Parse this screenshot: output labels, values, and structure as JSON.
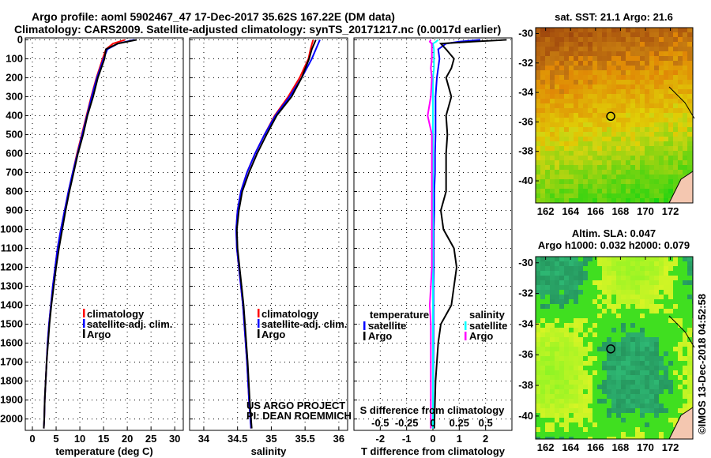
{
  "title_line1": "Argo profile: aoml 5902467_47 17-Dec-2017 35.62S 167.22E (DM data)",
  "title_line2": "Climatology: CARS2009. Satellite-adjusted climatology: synTS_20171217.nc (0.0017d earlier)",
  "credit_line1": "US ARGO PROJECT",
  "credit_line2": "PI: DEAN ROEMMICH",
  "imos_stamp": "©IMOS 13-Dec-2018 04:52:58",
  "colors": {
    "climatology": "#ff0000",
    "satellite": "#0000ff",
    "argo": "#000000",
    "s_satellite": "#00ffff",
    "s_argo": "#ff00ff"
  },
  "chart_data": [
    {
      "type": "line",
      "name": "temperature",
      "xlabel": "temperature (deg C)",
      "ylabel": "",
      "xlim": [
        -1.5,
        31.8
      ],
      "ylim": [
        2060,
        -10
      ],
      "xticks": [
        0,
        5,
        10,
        15,
        20,
        25,
        30
      ],
      "yticks": [
        0,
        100,
        200,
        300,
        400,
        500,
        600,
        700,
        800,
        900,
        1000,
        1100,
        1200,
        1300,
        1400,
        1500,
        1600,
        1700,
        1800,
        1900,
        2000
      ],
      "legend": [
        "climatology",
        "satellite-adj. clim.",
        "Argo"
      ],
      "depth": [
        0,
        20,
        50,
        100,
        200,
        300,
        400,
        500,
        600,
        700,
        800,
        900,
        1000,
        1100,
        1200,
        1300,
        1400,
        1500,
        1600,
        1700,
        1800,
        1900,
        2000,
        2050
      ],
      "series": [
        {
          "name": "climatology",
          "color": "#ff0000",
          "values": [
            19.5,
            17,
            15.5,
            14.8,
            13.5,
            12.4,
            11.4,
            10.4,
            9.4,
            8.5,
            7.6,
            6.8,
            6.0,
            5.3,
            4.8,
            4.3,
            3.9,
            3.5,
            3.2,
            3.0,
            2.8,
            2.6,
            2.5,
            2.4
          ]
        },
        {
          "name": "satellite-adj. clim.",
          "color": "#0000ff",
          "values": [
            21.5,
            18,
            15.8,
            15.0,
            13.6,
            12.5,
            11.5,
            10.5,
            9.5,
            8.5,
            7.6,
            6.8,
            6.0,
            5.3,
            4.8,
            4.3,
            3.9,
            3.5,
            3.2,
            3.0,
            2.8,
            2.6,
            2.5,
            2.4
          ]
        },
        {
          "name": "Argo",
          "color": "#000000",
          "values": [
            22,
            18,
            15.5,
            15.2,
            13.8,
            12.8,
            11.6,
            10.7,
            9.6,
            8.7,
            7.8,
            7.0,
            6.3,
            5.6,
            5.0,
            4.5,
            4.0,
            3.6,
            3.3,
            3.0,
            2.8,
            2.6,
            2.5,
            2.4
          ]
        }
      ]
    },
    {
      "type": "line",
      "name": "salinity",
      "xlabel": "salinity",
      "ylabel": "",
      "xlim": [
        33.79,
        36.13
      ],
      "ylim": [
        2060,
        -10
      ],
      "xticks": [
        34,
        34.5,
        35,
        35.5,
        36
      ],
      "legend": [
        "climatology",
        "satellite-adj. clim.",
        "Argo"
      ],
      "depth": [
        0,
        50,
        100,
        200,
        300,
        400,
        500,
        600,
        700,
        800,
        900,
        1000,
        1100,
        1200,
        1300,
        1400,
        1500,
        1700,
        1900,
        2050
      ],
      "series": [
        {
          "name": "climatology",
          "color": "#ff0000",
          "values": [
            35.62,
            35.58,
            35.55,
            35.42,
            35.25,
            35.05,
            34.9,
            34.76,
            34.64,
            34.55,
            34.5,
            34.48,
            34.49,
            34.52,
            34.55,
            34.58,
            34.6,
            34.64,
            34.67,
            34.7
          ]
        },
        {
          "name": "satellite-adj. clim.",
          "color": "#0000ff",
          "values": [
            35.72,
            35.66,
            35.6,
            35.45,
            35.27,
            35.06,
            34.9,
            34.76,
            34.64,
            34.55,
            34.5,
            34.48,
            34.49,
            34.52,
            34.55,
            34.58,
            34.6,
            34.64,
            34.67,
            34.7
          ]
        },
        {
          "name": "Argo",
          "color": "#000000",
          "values": [
            35.66,
            35.6,
            35.56,
            35.45,
            35.3,
            35.08,
            34.93,
            34.79,
            34.67,
            34.57,
            34.52,
            34.49,
            34.5,
            34.53,
            34.56,
            34.59,
            34.61,
            34.65,
            34.68,
            34.71
          ]
        }
      ]
    },
    {
      "type": "line",
      "name": "differences",
      "xlabel": "T difference from climatology",
      "x2label": "S difference from climatology",
      "xlim": [
        -3,
        3
      ],
      "ylim": [
        2060,
        -10
      ],
      "xticks": [
        -2,
        -1,
        0,
        1,
        2
      ],
      "x2ticks": [
        -0.5,
        -0.25,
        0,
        0.25,
        0.5
      ],
      "legend_temperature_title": "temperature",
      "legend_salinity_title": "salinity",
      "legend_items": [
        "satellite",
        "Argo"
      ],
      "depth": [
        0,
        10,
        20,
        50,
        100,
        150,
        200,
        300,
        400,
        500,
        600,
        700,
        800,
        900,
        1000,
        1100,
        1200,
        1300,
        1400,
        1500,
        1600,
        1800,
        2050
      ],
      "series": [
        {
          "name": "T satellite",
          "color": "#0000ff",
          "units": "T",
          "values": [
            1.8,
            1.0,
            0.5,
            0.2,
            0.25,
            0.2,
            0.15,
            0.1,
            0.1,
            0.1,
            0.08,
            0.08,
            0.05,
            0.05,
            0.03,
            0.03,
            0.03,
            0.02,
            0.02,
            0.02,
            0.02,
            0.01,
            0.0
          ]
        },
        {
          "name": "T Argo",
          "color": "#000000",
          "units": "T",
          "values": [
            2.8,
            1.5,
            0.3,
            0.5,
            0.8,
            0.7,
            0.5,
            0.7,
            0.5,
            0.55,
            0.5,
            0.5,
            0.5,
            0.3,
            0.4,
            0.8,
            0.9,
            0.8,
            0.7,
            0.3,
            0.2,
            0.1,
            0.05
          ]
        },
        {
          "name": "S satellite",
          "color": "#00ffff",
          "units": "S",
          "values": [
            0.05,
            0.03,
            0.0,
            0.01,
            0.01,
            0.01,
            0.0,
            0.0,
            0.0,
            0.0,
            0.0,
            0.0,
            0.0,
            0.0,
            0.0,
            0.0,
            0.0,
            0.0,
            0.0,
            0.0,
            0.0,
            0.0,
            0.0
          ]
        },
        {
          "name": "S Argo",
          "color": "#ff00ff",
          "units": "S",
          "values": [
            -0.02,
            -0.03,
            -0.01,
            -0.01,
            -0.01,
            -0.02,
            -0.01,
            -0.02,
            -0.05,
            -0.01,
            -0.01,
            -0.01,
            -0.01,
            -0.01,
            -0.01,
            -0.01,
            -0.01,
            -0.02,
            -0.03,
            -0.02,
            -0.02,
            -0.02,
            -0.02
          ]
        }
      ]
    },
    {
      "type": "heatmap",
      "name": "sst-map",
      "title": "sat. SST: 21.1 Argo: 21.6",
      "xlim": [
        161.2,
        173.8
      ],
      "ylim": [
        -41.5,
        -29.6
      ],
      "xticks": [
        162,
        164,
        166,
        168,
        170,
        172
      ],
      "yticks": [
        -30,
        -32,
        -34,
        -36,
        -38,
        -40
      ],
      "argo_position": [
        167.22,
        -35.62
      ]
    },
    {
      "type": "heatmap",
      "name": "sla-map",
      "title_line1": "Altim. SLA: 0.047",
      "title_line2": "Argo h1000: 0.032 h2000: 0.079",
      "xlim": [
        161.2,
        173.8
      ],
      "ylim": [
        -41.5,
        -29.6
      ],
      "xticks": [
        162,
        164,
        166,
        168,
        170,
        172
      ],
      "yticks": [
        -30,
        -32,
        -34,
        -36,
        -38,
        -40
      ],
      "argo_position": [
        167.22,
        -35.62
      ]
    }
  ]
}
